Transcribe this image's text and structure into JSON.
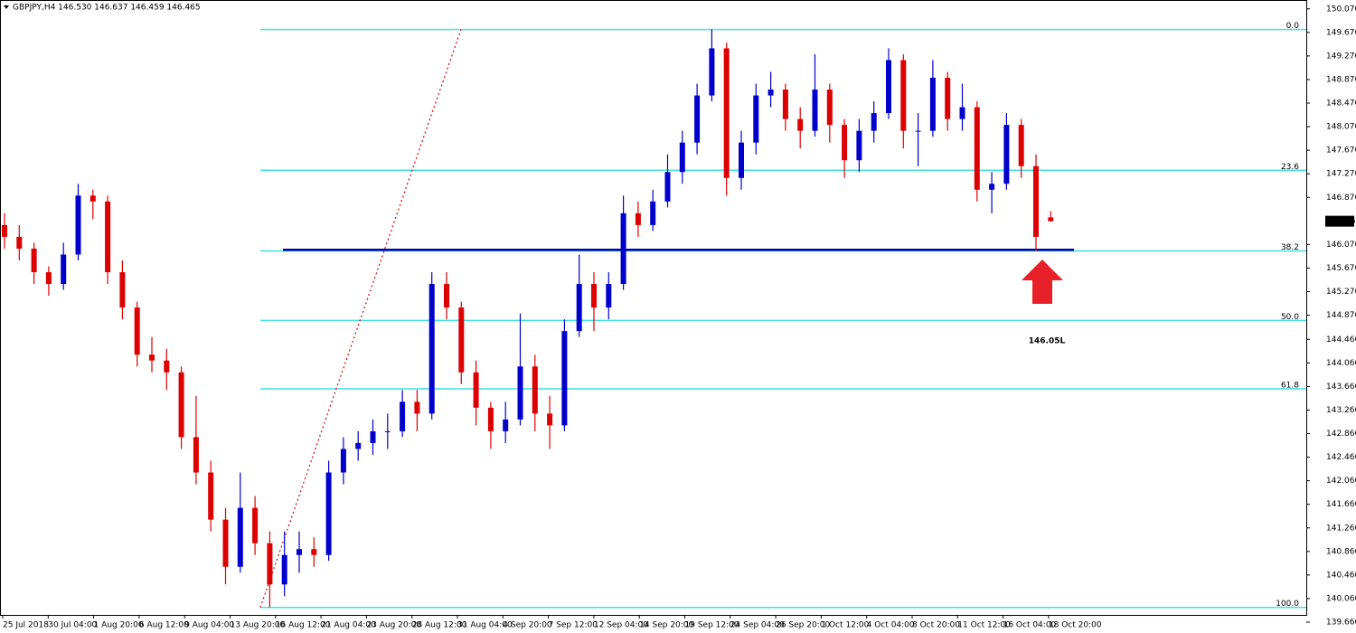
{
  "chart_data": {
    "type": "candlestick",
    "header": "GBPJPY,H4  146.530 146.637 146.459 146.465",
    "up_color": "#0000cc",
    "down_color": "#dd0000",
    "candles": {
      "open": [
        146.4,
        146.2,
        146.0,
        145.6,
        145.4,
        145.9,
        146.9,
        146.8,
        145.6,
        145.0,
        144.2,
        144.1,
        143.9,
        142.8,
        142.2,
        141.4,
        140.6,
        141.6,
        141.0,
        140.3,
        140.8,
        140.9,
        140.8,
        142.2,
        142.6,
        142.7,
        142.9,
        142.9,
        143.4,
        143.2,
        145.4,
        145.0,
        143.9,
        143.3,
        142.9,
        143.1,
        144.0,
        143.2,
        143.0,
        144.6,
        145.4,
        145.0,
        145.4,
        146.6,
        146.4,
        146.8,
        147.3,
        147.8,
        148.6,
        149.4,
        147.2,
        147.8,
        148.6,
        148.7,
        148.2,
        148.0,
        148.7,
        148.1,
        147.5,
        148.0,
        148.3,
        149.2,
        148.0,
        148.0,
        148.9,
        148.2,
        148.4,
        147.0,
        147.1,
        148.1,
        147.4,
        146.53
      ],
      "high": [
        146.6,
        146.4,
        146.1,
        145.7,
        146.1,
        147.1,
        147.0,
        146.9,
        145.8,
        145.1,
        144.5,
        144.3,
        144.0,
        143.5,
        142.4,
        141.6,
        142.2,
        141.8,
        141.2,
        141.2,
        141.2,
        141.1,
        142.4,
        142.8,
        142.9,
        143.1,
        143.2,
        143.6,
        143.6,
        145.6,
        145.6,
        145.1,
        144.1,
        143.4,
        143.4,
        144.9,
        144.2,
        143.5,
        144.8,
        145.9,
        145.6,
        145.6,
        146.9,
        146.8,
        147.0,
        147.6,
        148.0,
        148.8,
        149.72,
        149.5,
        148.0,
        148.8,
        149.0,
        148.8,
        148.4,
        149.3,
        148.8,
        148.2,
        148.2,
        148.5,
        149.4,
        149.3,
        148.3,
        149.2,
        149.0,
        148.8,
        148.5,
        147.3,
        148.3,
        148.2,
        147.6,
        146.637
      ],
      "low": [
        146.0,
        145.8,
        145.4,
        145.2,
        145.3,
        145.8,
        146.5,
        145.4,
        144.8,
        144.0,
        143.9,
        143.6,
        142.6,
        142.0,
        141.2,
        140.3,
        140.5,
        140.8,
        139.91,
        140.1,
        140.5,
        140.6,
        140.7,
        142.0,
        142.4,
        142.5,
        142.6,
        142.8,
        142.9,
        143.1,
        144.8,
        143.7,
        143.0,
        142.6,
        142.7,
        143.0,
        142.9,
        142.6,
        142.9,
        144.5,
        144.6,
        144.8,
        145.3,
        146.2,
        146.3,
        146.7,
        147.1,
        147.6,
        148.5,
        146.9,
        147.0,
        147.6,
        148.4,
        148.0,
        147.7,
        147.9,
        147.8,
        147.2,
        147.3,
        147.8,
        148.2,
        147.7,
        147.4,
        147.9,
        148.0,
        148.0,
        146.8,
        146.6,
        147.0,
        147.2,
        145.96,
        146.459
      ],
      "close": [
        146.2,
        146.0,
        145.6,
        145.4,
        145.9,
        146.9,
        146.8,
        145.6,
        145.0,
        144.2,
        144.1,
        143.9,
        142.8,
        142.2,
        141.4,
        140.6,
        141.6,
        141.0,
        140.3,
        140.8,
        140.9,
        140.8,
        142.2,
        142.6,
        142.7,
        142.9,
        142.9,
        143.4,
        143.2,
        145.4,
        145.0,
        143.9,
        143.3,
        142.9,
        143.1,
        144.0,
        143.2,
        143.0,
        144.6,
        145.4,
        145.0,
        145.4,
        146.6,
        146.4,
        146.8,
        147.3,
        147.8,
        148.6,
        149.4,
        147.2,
        147.8,
        148.6,
        148.7,
        148.2,
        148.0,
        148.7,
        148.1,
        147.5,
        148.0,
        148.3,
        149.2,
        148.0,
        148.0,
        148.9,
        148.2,
        148.4,
        147.0,
        147.1,
        148.1,
        147.4,
        146.2,
        146.465
      ]
    },
    "x_labels": [
      "25 Jul 2018",
      "30 Jul 04:00",
      "1 Aug 20:00",
      "6 Aug 12:00",
      "9 Aug 04:00",
      "13 Aug 20:00",
      "16 Aug 12:00",
      "21 Aug 04:00",
      "23 Aug 20:00",
      "28 Aug 12:00",
      "31 Aug 04:00",
      "4 Sep 20:00",
      "7 Sep 12:00",
      "12 Sep 04:00",
      "14 Sep 20:00",
      "19 Sep 12:00",
      "24 Sep 04:00",
      "26 Sep 20:00",
      "1 Oct 12:00",
      "4 Oct 04:00",
      "8 Oct 20:00",
      "11 Oct 12:00",
      "16 Oct 04:00",
      "18 Oct 20:00"
    ],
    "ylim": [
      139.66,
      150.22
    ],
    "yticks": [
      {
        "value": 150.07,
        "label": "150.070"
      },
      {
        "value": 149.67,
        "label": "149.670"
      },
      {
        "value": 149.27,
        "label": "149.270"
      },
      {
        "value": 148.87,
        "label": "148.870"
      },
      {
        "value": 148.47,
        "label": "148.470"
      },
      {
        "value": 148.07,
        "label": "148.070"
      },
      {
        "value": 147.67,
        "label": "147.670"
      },
      {
        "value": 147.27,
        "label": "147.270"
      },
      {
        "value": 146.87,
        "label": "146.870"
      },
      {
        "value": 146.07,
        "label": "146.070"
      },
      {
        "value": 145.67,
        "label": "145.670"
      },
      {
        "value": 145.27,
        "label": "145.270"
      },
      {
        "value": 144.87,
        "label": "144.870"
      },
      {
        "value": 144.46,
        "label": "144.460"
      },
      {
        "value": 144.06,
        "label": "144.060"
      },
      {
        "value": 143.66,
        "label": "143.660"
      },
      {
        "value": 143.26,
        "label": "143.260"
      },
      {
        "value": 142.86,
        "label": "142.860"
      },
      {
        "value": 142.46,
        "label": "142.460"
      },
      {
        "value": 142.06,
        "label": "142.060"
      },
      {
        "value": 141.66,
        "label": "141.660"
      },
      {
        "value": 141.26,
        "label": "141.260"
      },
      {
        "value": 140.86,
        "label": "140.860"
      },
      {
        "value": 140.46,
        "label": "140.460"
      },
      {
        "value": 140.06,
        "label": "140.060"
      },
      {
        "value": 139.66,
        "label": "139.660"
      }
    ],
    "fib_color": "#40e0e0",
    "fib_levels": [
      {
        "label": "0.0",
        "price": 149.72
      },
      {
        "label": "23.6",
        "price": 147.33
      },
      {
        "label": "38.2",
        "price": 145.96
      },
      {
        "label": "50.0",
        "price": 144.78
      },
      {
        "label": "61.8",
        "price": 143.62
      },
      {
        "label": "100.0",
        "price": 139.91
      }
    ],
    "support_line": {
      "price": 145.98,
      "color": "#0000b0"
    },
    "annotation": {
      "text": "146.05L",
      "color": "#e8202a"
    }
  }
}
